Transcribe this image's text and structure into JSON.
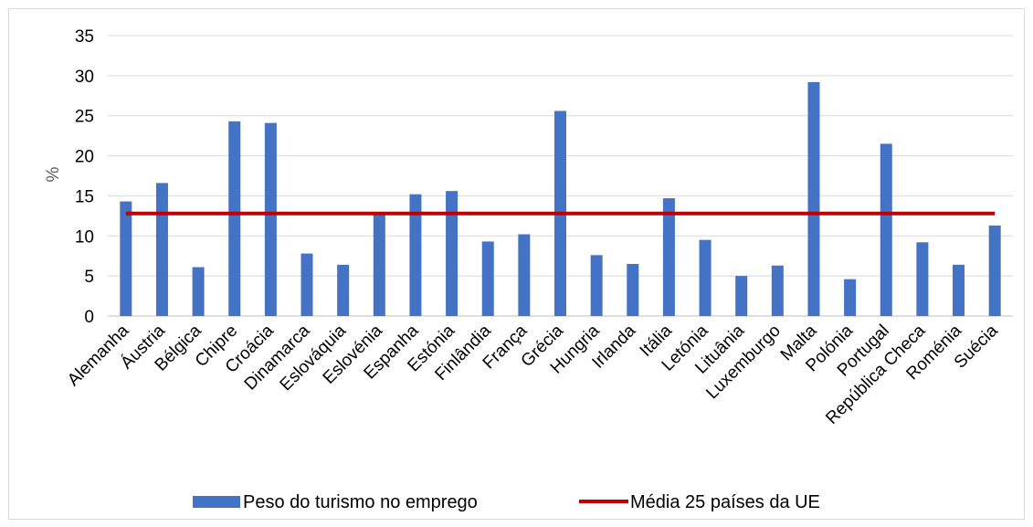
{
  "chart_data": {
    "type": "bar",
    "ylabel": "%",
    "ylim": [
      0,
      35
    ],
    "yticks": [
      "0",
      "5",
      "10",
      "15",
      "20",
      "25",
      "30",
      "35"
    ],
    "grid": true,
    "legend_position": "bottom",
    "categories": [
      "Alemanha",
      "Áustria",
      "Bélgica",
      "Chipre",
      "Croácia",
      "Dinamarca",
      "Eslováquia",
      "Eslovénia",
      "Espanha",
      "Estónia",
      "Finlândia",
      "França",
      "Grécia",
      "Hungria",
      "Irlanda",
      "Itália",
      "Letónia",
      "Lituânia",
      "Luxemburgo",
      "Malta",
      "Polónia",
      "Portugal",
      "República Checa",
      "Roménia",
      "Suécia"
    ],
    "series": [
      {
        "name": "Peso do turismo no emprego",
        "type": "bar",
        "color": "#4472c4",
        "values": [
          14.3,
          16.6,
          6.1,
          24.3,
          24.1,
          7.8,
          6.4,
          12.7,
          15.2,
          15.6,
          9.3,
          10.2,
          25.6,
          7.6,
          6.5,
          14.7,
          9.5,
          5.0,
          6.3,
          29.2,
          4.6,
          21.5,
          9.2,
          6.4,
          11.3
        ]
      },
      {
        "name": "Média 25 países da UE",
        "type": "line",
        "color": "#c00000",
        "value": 12.8
      }
    ]
  }
}
